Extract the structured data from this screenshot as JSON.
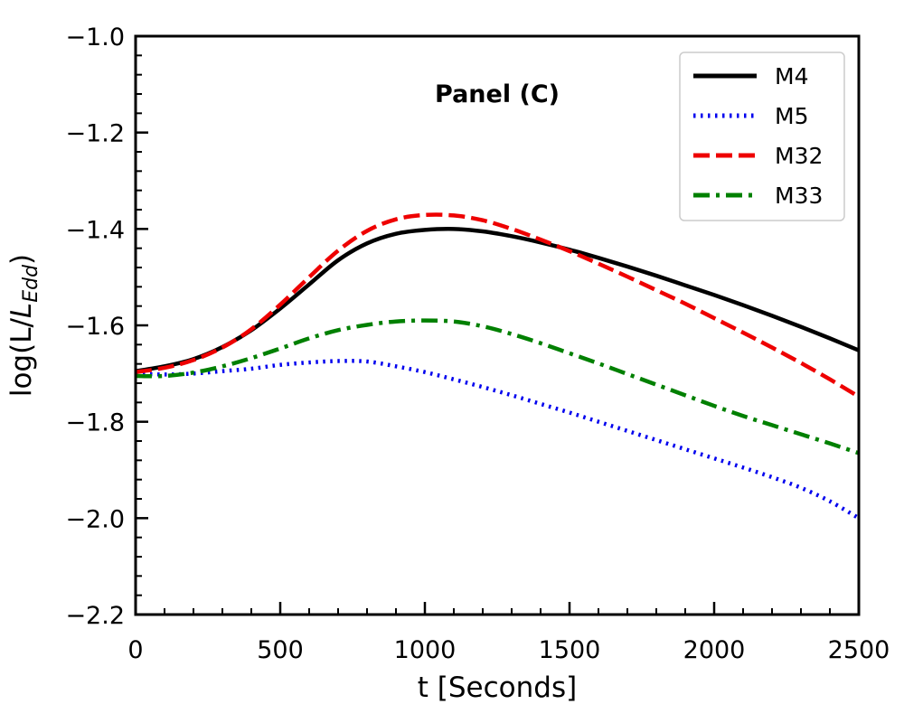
{
  "chart_data": {
    "type": "line",
    "title": "",
    "annotation": "Panel (C)",
    "xlabel": "t [Seconds]",
    "ylabel_prefix": "log(L/",
    "ylabel_symbol": "L",
    "ylabel_subscript": "Edd",
    "ylabel_suffix": ")",
    "xlim": [
      0,
      2500
    ],
    "ylim": [
      -2.2,
      -1.0
    ],
    "x_ticks": [
      0,
      500,
      1000,
      1500,
      2000,
      2500
    ],
    "x_tick_labels": [
      "0",
      "500",
      "1000",
      "1500",
      "2000",
      "2500"
    ],
    "x_minor_step": 100,
    "y_ticks": [
      -2.2,
      -2.0,
      -1.8,
      -1.6,
      -1.4,
      -1.2,
      -1.0
    ],
    "y_tick_labels": [
      "−2.2",
      "−2.0",
      "−1.8",
      "−1.6",
      "−1.4",
      "−1.2",
      "−1.0"
    ],
    "y_minor_step": 0.04,
    "legend_position": "top-right",
    "grid": false,
    "series": [
      {
        "name": "M4",
        "color": "#000000",
        "style": "solid",
        "x": [
          0,
          100,
          200,
          300,
          400,
          500,
          600,
          700,
          800,
          900,
          1000,
          1100,
          1200,
          1300,
          1400,
          1500,
          1600,
          1700,
          1800,
          1900,
          2000,
          2100,
          2200,
          2300,
          2400,
          2500
        ],
        "y": [
          -1.695,
          -1.685,
          -1.67,
          -1.645,
          -1.61,
          -1.565,
          -1.515,
          -1.465,
          -1.43,
          -1.41,
          -1.402,
          -1.4,
          -1.405,
          -1.415,
          -1.428,
          -1.443,
          -1.46,
          -1.478,
          -1.497,
          -1.517,
          -1.537,
          -1.558,
          -1.58,
          -1.603,
          -1.627,
          -1.652
        ]
      },
      {
        "name": "M5",
        "color": "#0000ee",
        "style": "dotted",
        "x": [
          0,
          100,
          200,
          300,
          400,
          500,
          600,
          700,
          800,
          900,
          1000,
          1100,
          1200,
          1300,
          1400,
          1500,
          1600,
          1700,
          1800,
          1900,
          2000,
          2100,
          2200,
          2300,
          2400,
          2500
        ],
        "y": [
          -1.7,
          -1.702,
          -1.7,
          -1.695,
          -1.69,
          -1.682,
          -1.677,
          -1.674,
          -1.675,
          -1.685,
          -1.697,
          -1.712,
          -1.728,
          -1.745,
          -1.763,
          -1.781,
          -1.8,
          -1.819,
          -1.838,
          -1.857,
          -1.876,
          -1.895,
          -1.915,
          -1.937,
          -1.965,
          -2.0
        ]
      },
      {
        "name": "M32",
        "color": "#ee0000",
        "style": "dashed",
        "x": [
          0,
          100,
          200,
          300,
          400,
          500,
          600,
          700,
          800,
          900,
          1000,
          1100,
          1200,
          1300,
          1400,
          1500,
          1600,
          1700,
          1800,
          1900,
          2000,
          2100,
          2200,
          2300,
          2400,
          2500
        ],
        "y": [
          -1.697,
          -1.688,
          -1.672,
          -1.646,
          -1.608,
          -1.557,
          -1.5,
          -1.445,
          -1.404,
          -1.38,
          -1.371,
          -1.372,
          -1.382,
          -1.4,
          -1.422,
          -1.446,
          -1.472,
          -1.499,
          -1.527,
          -1.555,
          -1.585,
          -1.615,
          -1.646,
          -1.678,
          -1.712,
          -1.748
        ]
      },
      {
        "name": "M33",
        "color": "#008000",
        "style": "dashdot",
        "x": [
          0,
          100,
          200,
          300,
          400,
          500,
          600,
          700,
          800,
          900,
          1000,
          1100,
          1200,
          1300,
          1400,
          1500,
          1600,
          1700,
          1800,
          1900,
          2000,
          2100,
          2200,
          2300,
          2400,
          2500
        ],
        "y": [
          -1.705,
          -1.705,
          -1.698,
          -1.685,
          -1.668,
          -1.648,
          -1.627,
          -1.61,
          -1.599,
          -1.592,
          -1.59,
          -1.592,
          -1.602,
          -1.618,
          -1.637,
          -1.658,
          -1.679,
          -1.701,
          -1.723,
          -1.745,
          -1.767,
          -1.788,
          -1.807,
          -1.826,
          -1.845,
          -1.865
        ]
      }
    ]
  }
}
